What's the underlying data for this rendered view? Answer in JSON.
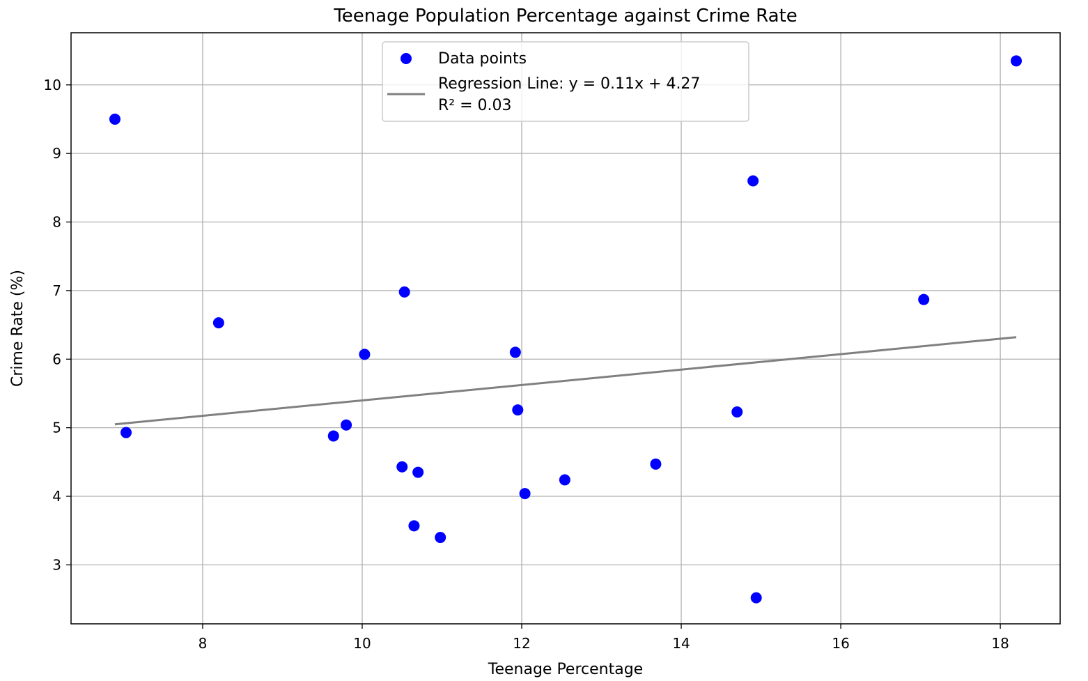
{
  "chart_data": {
    "type": "scatter",
    "title": "Teenage Population Percentage against Crime Rate",
    "xlabel": "Teenage Percentage",
    "ylabel": "Crime Rate (%)",
    "xlim": [
      6.35,
      18.75
    ],
    "ylim": [
      2.14,
      10.76
    ],
    "x_ticks": [
      8,
      10,
      12,
      14,
      16,
      18
    ],
    "y_ticks": [
      3,
      4,
      5,
      6,
      7,
      8,
      9,
      10
    ],
    "grid": true,
    "legend_position": "upper center",
    "series": [
      {
        "name": "Data points",
        "kind": "points",
        "color": "#0000ff",
        "points": [
          {
            "x": 6.9,
            "y": 9.5
          },
          {
            "x": 7.04,
            "y": 4.93
          },
          {
            "x": 8.2,
            "y": 6.53
          },
          {
            "x": 9.64,
            "y": 4.88
          },
          {
            "x": 9.8,
            "y": 5.04
          },
          {
            "x": 10.03,
            "y": 6.07
          },
          {
            "x": 10.5,
            "y": 4.43
          },
          {
            "x": 10.53,
            "y": 6.98
          },
          {
            "x": 10.65,
            "y": 3.57
          },
          {
            "x": 10.7,
            "y": 4.35
          },
          {
            "x": 10.98,
            "y": 3.4
          },
          {
            "x": 11.92,
            "y": 6.1
          },
          {
            "x": 11.95,
            "y": 5.26
          },
          {
            "x": 12.04,
            "y": 4.04
          },
          {
            "x": 12.54,
            "y": 4.24
          },
          {
            "x": 13.68,
            "y": 4.47
          },
          {
            "x": 14.7,
            "y": 5.23
          },
          {
            "x": 14.9,
            "y": 8.6
          },
          {
            "x": 14.94,
            "y": 2.52
          },
          {
            "x": 17.04,
            "y": 6.87
          },
          {
            "x": 18.2,
            "y": 10.35
          }
        ]
      },
      {
        "name": "Regression Line: y = 0.11x + 4.27",
        "name_line2": "R² = 0.03",
        "kind": "line",
        "color": "#808080",
        "x": [
          6.9,
          18.2
        ],
        "y": [
          5.05,
          6.32
        ]
      }
    ]
  }
}
